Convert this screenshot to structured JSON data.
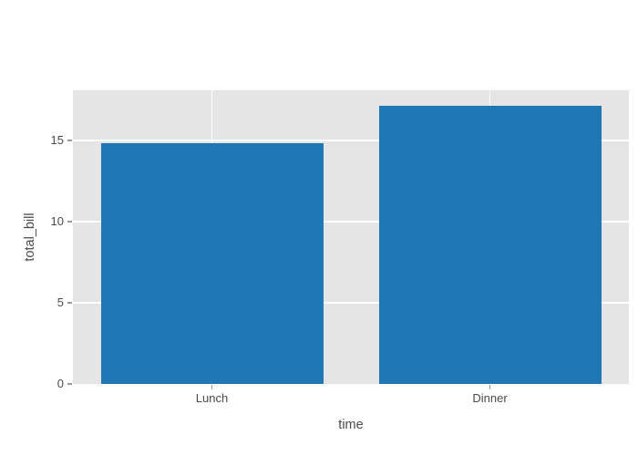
{
  "chart_data": {
    "type": "bar",
    "title": "",
    "categories": [
      "Lunch",
      "Dinner"
    ],
    "values": [
      14.85,
      17.15
    ],
    "xlabel": "time",
    "ylabel": "total_bill",
    "ylim": [
      0,
      18.1
    ],
    "yticks": [
      0,
      5,
      10,
      15
    ],
    "grid": true,
    "legend_position": "none",
    "orientation": "vertical",
    "colors": {
      "bar": "#1f77b4",
      "plot_background": "#e5e5e5",
      "figure_background": "#ffffff",
      "gridline": "#ffffff",
      "tick_mark": "#999999",
      "text": "#4a4a4a"
    }
  }
}
